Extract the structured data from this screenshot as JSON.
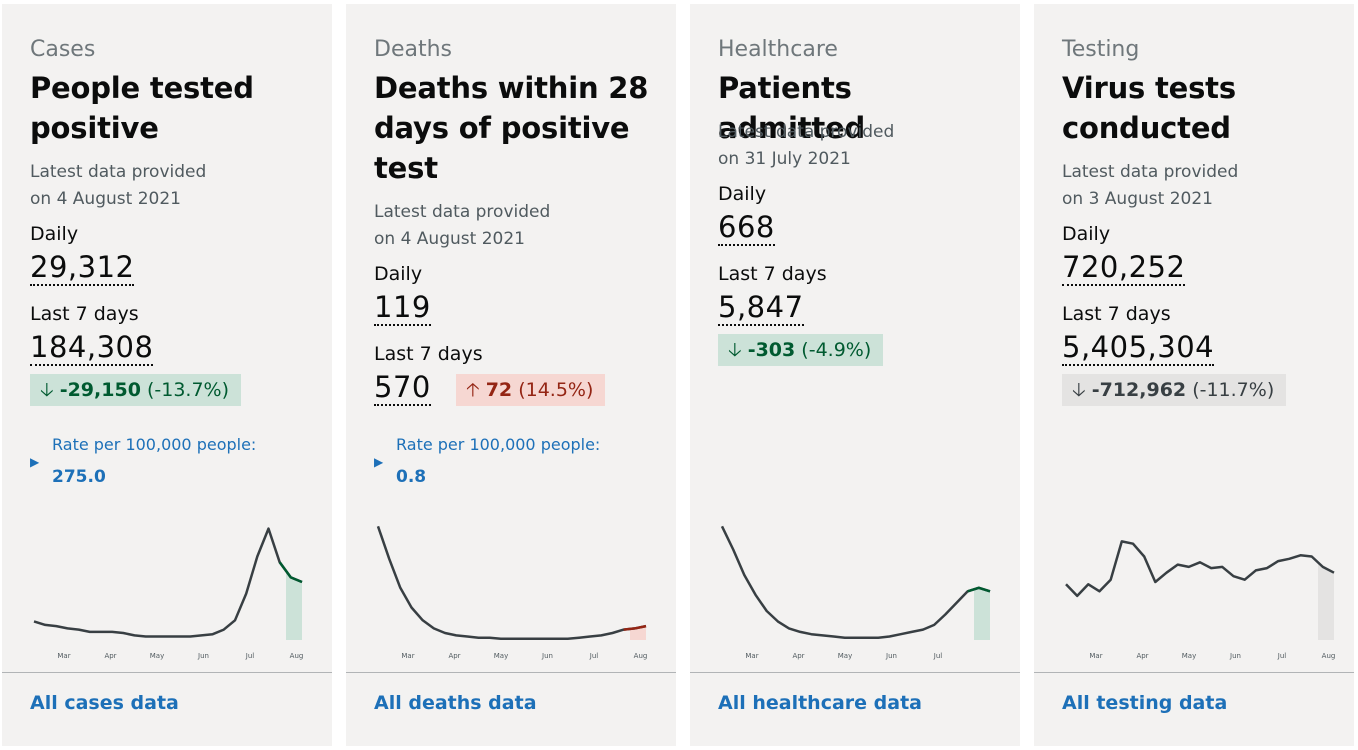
{
  "colors": {
    "card_bg": "#f3f2f1",
    "link": "#1d70b8",
    "down_bg": "#cce2d8",
    "down_fg": "#005a30",
    "up_bg": "#f6d7d2",
    "up_fg": "#942514",
    "neutral_bg": "#e4e3e2",
    "line": "#383f43"
  },
  "cards": [
    {
      "category": "Cases",
      "title": "People tested positive",
      "provided_line1": "Latest data provided",
      "provided_line2": "on 4 August 2021",
      "daily_label": "Daily",
      "daily_value": "29,312",
      "week_label": "Last 7 days",
      "week_value": "184,308",
      "change_arrow": "🡣",
      "change_value": "-29,150",
      "change_pct": "(-13.7%)",
      "change_direction": "down",
      "rate_label": "Rate per 100,000 people:",
      "rate_value": "275.0",
      "chart_data": {
        "type": "line",
        "x_ticks": [
          "Mar",
          "Apr",
          "May",
          "Jun",
          "Jul",
          "Aug"
        ],
        "series": [
          {
            "values": [
              0.16,
              0.13,
              0.12,
              0.1,
              0.09,
              0.07,
              0.07,
              0.07,
              0.06,
              0.04,
              0.03,
              0.03,
              0.03,
              0.03,
              0.03,
              0.04,
              0.05,
              0.09,
              0.17,
              0.4,
              0.72,
              0.96,
              0.67,
              0.54,
              0.5
            ]
          }
        ],
        "highlight": "last 7 days, decreasing"
      },
      "link_label": "All cases data"
    },
    {
      "category": "Deaths",
      "title": "Deaths within 28 days of positive test",
      "provided_line1": "Latest data provided",
      "provided_line2": "on 4 August 2021",
      "daily_label": "Daily",
      "daily_value": "119",
      "week_label": "Last 7 days",
      "week_value": "570",
      "change_arrow": "🡡",
      "change_value": "72",
      "change_pct": "(14.5%)",
      "change_direction": "up",
      "rate_label": "Rate per 100,000 people:",
      "rate_value": "0.8",
      "chart_data": {
        "type": "line",
        "x_ticks": [
          "Mar",
          "Apr",
          "May",
          "Jun",
          "Jul",
          "Aug"
        ],
        "series": [
          {
            "values": [
              0.98,
              0.7,
              0.45,
              0.28,
              0.17,
              0.1,
              0.06,
              0.04,
              0.03,
              0.02,
              0.02,
              0.01,
              0.01,
              0.01,
              0.01,
              0.01,
              0.01,
              0.01,
              0.02,
              0.03,
              0.04,
              0.06,
              0.09,
              0.1,
              0.12
            ]
          }
        ],
        "highlight": "last 7 days, increasing"
      },
      "link_label": "All deaths data"
    },
    {
      "category": "Healthcare",
      "title": "Patients admitted",
      "provided_line1": "Latest data provided",
      "provided_line2": "on 31 July 2021",
      "daily_label": "Daily",
      "daily_value": "668",
      "week_label": "Last 7 days",
      "week_value": "5,847",
      "change_arrow": "🡣",
      "change_value": "-303",
      "change_pct": "(-4.9%)",
      "change_direction": "down",
      "chart_data": {
        "type": "line",
        "x_ticks": [
          "Mar",
          "Apr",
          "May",
          "Jun",
          "Jul"
        ],
        "series": [
          {
            "values": [
              0.98,
              0.78,
              0.56,
              0.39,
              0.25,
              0.16,
              0.1,
              0.07,
              0.05,
              0.04,
              0.03,
              0.02,
              0.02,
              0.02,
              0.02,
              0.03,
              0.05,
              0.07,
              0.09,
              0.13,
              0.22,
              0.32,
              0.42,
              0.45,
              0.42
            ]
          }
        ],
        "highlight": "last 7 days, decreasing"
      },
      "link_label": "All healthcare data"
    },
    {
      "category": "Testing",
      "title": "Virus tests conducted",
      "provided_line1": "Latest data provided",
      "provided_line2": "on 3 August 2021",
      "daily_label": "Daily",
      "daily_value": "720,252",
      "week_label": "Last 7 days",
      "week_value": "5,405,304",
      "change_arrow": "🡣",
      "change_value": "-712,962",
      "change_pct": "(-11.7%)",
      "change_direction": "neutral",
      "chart_data": {
        "type": "line",
        "x_ticks": [
          "Mar",
          "Apr",
          "May",
          "Jun",
          "Jul",
          "Aug"
        ],
        "series": [
          {
            "values": [
              0.48,
              0.38,
              0.48,
              0.42,
              0.52,
              0.85,
              0.83,
              0.72,
              0.5,
              0.58,
              0.65,
              0.63,
              0.67,
              0.62,
              0.63,
              0.55,
              0.52,
              0.6,
              0.62,
              0.68,
              0.7,
              0.73,
              0.72,
              0.63,
              0.58
            ]
          }
        ],
        "highlight": "last 7 days, decreasing"
      },
      "link_label": "All testing data"
    }
  ]
}
